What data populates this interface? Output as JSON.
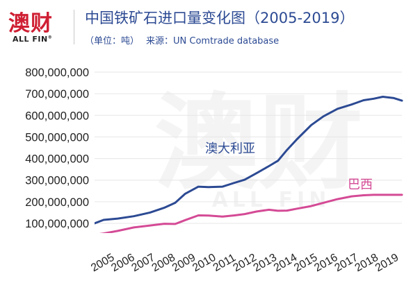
{
  "brand": {
    "logo_text": "澳财",
    "logo_sub": "ALL FIN",
    "logo_mark": "®",
    "brand_color": "#cf1f33"
  },
  "header": {
    "title": "中国铁矿石进口量变化图（2005-2019）",
    "unit": "（单位：吨）",
    "source": "来源：UN Comtrade database",
    "title_color": "#2c4a93"
  },
  "watermark": {
    "text": "澳财",
    "sub": "ALL FIN"
  },
  "chart_data": {
    "type": "line",
    "title": "中国铁矿石进口量变化图（2005-2019）",
    "xlabel": "",
    "ylabel": "",
    "x": [
      "2005",
      "2006",
      "2007",
      "2008",
      "2009",
      "2010",
      "2011",
      "2012",
      "2013",
      "2014",
      "2015",
      "2016",
      "2017",
      "2018",
      "2019"
    ],
    "x_tick_labels": [
      "2005",
      "2006",
      "2007",
      "2008",
      "2009",
      "2010",
      "2011",
      "2012",
      "2013",
      "2014",
      "2015",
      "2016",
      "2017",
      "2018",
      "2019"
    ],
    "ylim": [
      100000000,
      800000000
    ],
    "y_ticks": [
      100000000,
      200000000,
      300000000,
      400000000,
      500000000,
      600000000,
      700000000,
      800000000
    ],
    "y_tick_labels": [
      "100,000,000",
      "200,000,000",
      "300,000,000",
      "400,000,000",
      "500,000,000",
      "600,000,000",
      "700,000,000",
      "800,000,000"
    ],
    "grid": "horizontal",
    "legend": "inline labels",
    "series": [
      {
        "name": "澳大利亚",
        "color": "#2c4a93",
        "x": [
          2004.15,
          2004.6,
          2005.3,
          2006.1,
          2006.9,
          2007.6,
          2008.15,
          2008.65,
          2009.3,
          2009.8,
          2010.5,
          2011.1,
          2011.6,
          2012.2,
          2012.8,
          2013.25,
          2013.7,
          2014.2,
          2014.9,
          2015.5,
          2016.2,
          2016.9,
          2017.5,
          2018.0,
          2018.45,
          2019.0,
          2019.4
        ],
        "y": [
          100000000,
          116000000,
          122000000,
          133000000,
          150000000,
          172000000,
          195000000,
          237000000,
          270000000,
          268000000,
          270000000,
          288000000,
          302000000,
          333000000,
          365000000,
          390000000,
          440000000,
          490000000,
          555000000,
          595000000,
          630000000,
          650000000,
          670000000,
          677000000,
          686000000,
          680000000,
          668000000
        ]
      },
      {
        "name": "巴西",
        "color": "#d44a95",
        "x": [
          2004.15,
          2004.6,
          2005.3,
          2006.1,
          2006.9,
          2007.6,
          2008.15,
          2008.65,
          2009.3,
          2009.8,
          2010.5,
          2011.1,
          2011.6,
          2012.2,
          2012.8,
          2013.25,
          2013.7,
          2014.2,
          2014.9,
          2015.5,
          2016.2,
          2016.9,
          2017.5,
          2018.0,
          2018.45,
          2019.0,
          2019.4
        ],
        "y": [
          47000000,
          53000000,
          65000000,
          81000000,
          90000000,
          98000000,
          97000000,
          115000000,
          137000000,
          136000000,
          131000000,
          137000000,
          143000000,
          155000000,
          163000000,
          158000000,
          159000000,
          168000000,
          180000000,
          195000000,
          212000000,
          225000000,
          230000000,
          232000000,
          232000000,
          232000000,
          232000000
        ]
      }
    ]
  }
}
